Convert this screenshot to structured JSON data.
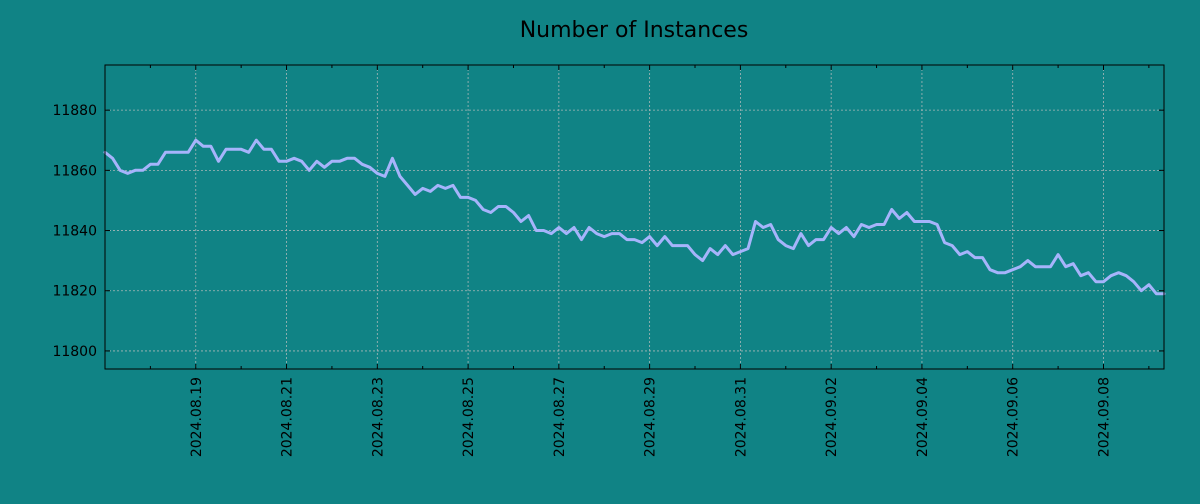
{
  "chart_data": {
    "type": "line",
    "title": "Number of Instances",
    "xlabel": "",
    "ylabel": "",
    "grid": true,
    "legend": "none",
    "colors": {
      "background": "#108385",
      "line": "#a6b4fb",
      "grid": "#a9b8b8",
      "axis": "#000000"
    },
    "ylim": [
      11794,
      11895
    ],
    "yticks": [
      11800,
      11820,
      11840,
      11860,
      11880
    ],
    "xlim": [
      "2024-08-17 00:00",
      "2024-09-09 08:00"
    ],
    "xticks": [
      "2024-08-19",
      "2024-08-21",
      "2024-08-23",
      "2024-08-25",
      "2024-08-27",
      "2024-08-29",
      "2024-08-31",
      "2024-09-02",
      "2024-09-04",
      "2024-09-06",
      "2024-09-08"
    ],
    "xtick_labels": [
      "2024.08.19",
      "2024.08.21",
      "2024.08.23",
      "2024.08.25",
      "2024.08.27",
      "2024.08.29",
      "2024.08.31",
      "2024.09.02",
      "2024.09.04",
      "2024.09.06",
      "2024.09.08"
    ],
    "series": [
      {
        "sampling": "every 4 hours",
        "x": [
          "2024-08-17 00:00",
          "2024-08-17 04:00",
          "2024-08-17 08:00",
          "2024-08-17 12:00",
          "2024-08-17 16:00",
          "2024-08-17 20:00",
          "2024-08-18 00:00",
          "2024-08-18 04:00",
          "2024-08-18 08:00",
          "2024-08-18 12:00",
          "2024-08-18 16:00",
          "2024-08-18 20:00",
          "2024-08-19 00:00",
          "2024-08-19 04:00",
          "2024-08-19 08:00",
          "2024-08-19 12:00",
          "2024-08-19 16:00",
          "2024-08-19 20:00",
          "2024-08-20 00:00",
          "2024-08-20 04:00",
          "2024-08-20 08:00",
          "2024-08-20 12:00",
          "2024-08-20 16:00",
          "2024-08-20 20:00",
          "2024-08-21 00:00",
          "2024-08-21 04:00",
          "2024-08-21 08:00",
          "2024-08-21 12:00",
          "2024-08-21 16:00",
          "2024-08-21 20:00",
          "2024-08-22 00:00",
          "2024-08-22 04:00",
          "2024-08-22 08:00",
          "2024-08-22 12:00",
          "2024-08-22 16:00",
          "2024-08-22 20:00",
          "2024-08-23 00:00",
          "2024-08-23 04:00",
          "2024-08-23 08:00",
          "2024-08-23 12:00",
          "2024-08-23 16:00",
          "2024-08-23 20:00",
          "2024-08-24 00:00",
          "2024-08-24 04:00",
          "2024-08-24 08:00",
          "2024-08-24 12:00",
          "2024-08-24 16:00",
          "2024-08-24 20:00",
          "2024-08-25 00:00",
          "2024-08-25 04:00",
          "2024-08-25 08:00",
          "2024-08-25 12:00",
          "2024-08-25 16:00",
          "2024-08-25 20:00",
          "2024-08-26 00:00",
          "2024-08-26 04:00",
          "2024-08-26 08:00",
          "2024-08-26 12:00",
          "2024-08-26 16:00",
          "2024-08-26 20:00",
          "2024-08-27 00:00",
          "2024-08-27 04:00",
          "2024-08-27 08:00",
          "2024-08-27 12:00",
          "2024-08-27 16:00",
          "2024-08-27 20:00",
          "2024-08-28 00:00",
          "2024-08-28 04:00",
          "2024-08-28 08:00",
          "2024-08-28 12:00",
          "2024-08-28 16:00",
          "2024-08-28 20:00",
          "2024-08-29 00:00",
          "2024-08-29 04:00",
          "2024-08-29 08:00",
          "2024-08-29 12:00",
          "2024-08-29 16:00",
          "2024-08-29 20:00",
          "2024-08-30 00:00",
          "2024-08-30 04:00",
          "2024-08-30 08:00",
          "2024-08-30 12:00",
          "2024-08-30 16:00",
          "2024-08-30 20:00",
          "2024-08-31 00:00",
          "2024-08-31 04:00",
          "2024-08-31 08:00",
          "2024-08-31 12:00",
          "2024-08-31 16:00",
          "2024-08-31 20:00",
          "2024-09-01 00:00",
          "2024-09-01 04:00",
          "2024-09-01 08:00",
          "2024-09-01 12:00",
          "2024-09-01 16:00",
          "2024-09-01 20:00",
          "2024-09-02 00:00",
          "2024-09-02 04:00",
          "2024-09-02 08:00",
          "2024-09-02 12:00",
          "2024-09-02 16:00",
          "2024-09-02 20:00",
          "2024-09-03 00:00",
          "2024-09-03 04:00",
          "2024-09-03 08:00",
          "2024-09-03 12:00",
          "2024-09-03 16:00",
          "2024-09-03 20:00",
          "2024-09-04 00:00",
          "2024-09-04 04:00",
          "2024-09-04 08:00",
          "2024-09-04 12:00",
          "2024-09-04 16:00",
          "2024-09-04 20:00",
          "2024-09-05 00:00",
          "2024-09-05 04:00",
          "2024-09-05 08:00",
          "2024-09-05 12:00",
          "2024-09-05 16:00",
          "2024-09-05 20:00",
          "2024-09-06 00:00",
          "2024-09-06 04:00",
          "2024-09-06 08:00",
          "2024-09-06 12:00",
          "2024-09-06 16:00",
          "2024-09-06 20:00",
          "2024-09-07 00:00",
          "2024-09-07 04:00",
          "2024-09-07 08:00",
          "2024-09-07 12:00",
          "2024-09-07 16:00",
          "2024-09-07 20:00",
          "2024-09-08 00:00",
          "2024-09-08 04:00",
          "2024-09-08 08:00",
          "2024-09-08 12:00",
          "2024-09-08 16:00",
          "2024-09-08 20:00",
          "2024-09-09 00:00",
          "2024-09-09 04:00",
          "2024-09-09 08:00"
        ],
        "values": [
          11866,
          11864,
          11860,
          11859,
          11860,
          11860,
          11862,
          11862,
          11866,
          11866,
          11866,
          11866,
          11870,
          11868,
          11868,
          11863,
          11867,
          11867,
          11867,
          11866,
          11870,
          11867,
          11867,
          11863,
          11863,
          11864,
          11863,
          11860,
          11863,
          11861,
          11863,
          11863,
          11864,
          11864,
          11862,
          11861,
          11859,
          11858,
          11864,
          11858,
          11855,
          11852,
          11854,
          11853,
          11855,
          11854,
          11855,
          11851,
          11851,
          11850,
          11847,
          11846,
          11848,
          11848,
          11846,
          11843,
          11845,
          11840,
          11840,
          11839,
          11841,
          11839,
          11841,
          11837,
          11841,
          11839,
          11838,
          11839,
          11839,
          11837,
          11837,
          11836,
          11838,
          11835,
          11838,
          11835,
          11835,
          11835,
          11832,
          11830,
          11834,
          11832,
          11835,
          11832,
          11833,
          11834,
          11843,
          11841,
          11842,
          11837,
          11835,
          11834,
          11839,
          11835,
          11837,
          11837,
          11841,
          11839,
          11841,
          11838,
          11842,
          11841,
          11842,
          11842,
          11847,
          11844,
          11846,
          11843,
          11843,
          11843,
          11842,
          11836,
          11835,
          11832,
          11833,
          11831,
          11831,
          11827,
          11826,
          11826,
          11827,
          11828,
          11830,
          11828,
          11828,
          11828,
          11832,
          11828,
          11829,
          11825,
          11826,
          11823,
          11823,
          11825,
          11826,
          11825,
          11823,
          11820,
          11822,
          11819,
          11819
        ]
      }
    ]
  }
}
